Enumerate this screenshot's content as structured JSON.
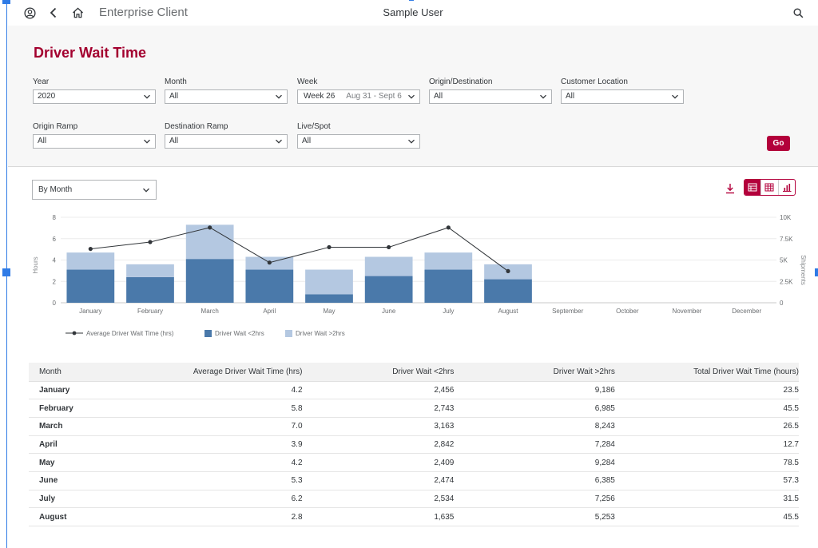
{
  "header": {
    "app_title": "Enterprise Client",
    "user_name": "Sample User"
  },
  "page": {
    "title": "Driver Wait Time"
  },
  "filters": {
    "year": {
      "label": "Year",
      "value": "2020"
    },
    "month": {
      "label": "Month",
      "value": "All"
    },
    "week": {
      "label": "Week",
      "value": "Week 26",
      "range": "Aug 31 - Sept 6"
    },
    "origin_destination": {
      "label": "Origin/Destination",
      "value": "All"
    },
    "customer_location": {
      "label": "Customer Location",
      "value": "All"
    },
    "origin_ramp": {
      "label": "Origin Ramp",
      "value": "All"
    },
    "destination_ramp": {
      "label": "Destination Ramp",
      "value": "All"
    },
    "live_spot": {
      "label": "Live/Spot",
      "value": "All"
    },
    "go_label": "Go"
  },
  "toolbar": {
    "group_by": "By Month"
  },
  "chart_data": {
    "type": "bar",
    "stacked": true,
    "categories": [
      "January",
      "February",
      "March",
      "April",
      "May",
      "June",
      "July",
      "August",
      "September",
      "October",
      "November",
      "December"
    ],
    "series": [
      {
        "name": "Driver Wait <2hrs",
        "axis": "left",
        "color": "#4a79aa",
        "values": [
          3.1,
          2.4,
          4.1,
          3.1,
          0.8,
          2.5,
          3.1,
          2.2,
          null,
          null,
          null,
          null
        ]
      },
      {
        "name": "Driver Wait >2hrs",
        "axis": "left",
        "color": "#b4c8e1",
        "values": [
          1.6,
          1.2,
          3.2,
          1.2,
          2.3,
          1.8,
          1.6,
          1.4,
          null,
          null,
          null,
          null
        ]
      },
      {
        "name": "Average Driver Wait Time (hrs)",
        "type": "line",
        "axis": "right",
        "color": "#32363a",
        "values": [
          6300,
          7100,
          8800,
          4700,
          6500,
          6500,
          8800,
          3700,
          null,
          null,
          null,
          null
        ]
      }
    ],
    "y_left": {
      "label": "Hours",
      "ticks": [
        "0",
        "2",
        "4",
        "6",
        "8"
      ],
      "range": [
        0,
        8
      ]
    },
    "y_right": {
      "label": "Shipments",
      "ticks": [
        "0",
        "2.5K",
        "5K",
        "7.5K",
        "10K"
      ],
      "range": [
        0,
        10000
      ]
    },
    "legend_position": "bottom-left",
    "grid": true
  },
  "table": {
    "headers": [
      "Month",
      "Average Driver Wait Time (hrs)",
      "Driver Wait <2hrs",
      "Driver Wait >2hrs",
      "Total Driver Wait Time (hours)"
    ],
    "rows": [
      [
        "January",
        "4.2",
        "2,456",
        "9,186",
        "23.5"
      ],
      [
        "February",
        "5.8",
        "2,743",
        "6,985",
        "45.5"
      ],
      [
        "March",
        "7.0",
        "3,163",
        "8,243",
        "26.5"
      ],
      [
        "April",
        "3.9",
        "2,842",
        "7,284",
        "12.7"
      ],
      [
        "May",
        "4.2",
        "2,409",
        "9,284",
        "78.5"
      ],
      [
        "June",
        "5.3",
        "2,474",
        "6,385",
        "57.3"
      ],
      [
        "July",
        "6.2",
        "2,534",
        "7,256",
        "31.5"
      ],
      [
        "August",
        "2.8",
        "1,635",
        "5,253",
        "45.5"
      ]
    ]
  },
  "icons": {
    "profile": "user-circle-icon",
    "back": "chevron-left-icon",
    "home": "home-icon",
    "search": "search-icon",
    "download": "download-icon",
    "views": [
      "chart-table-icon",
      "table-icon",
      "bar-chart-icon"
    ]
  }
}
